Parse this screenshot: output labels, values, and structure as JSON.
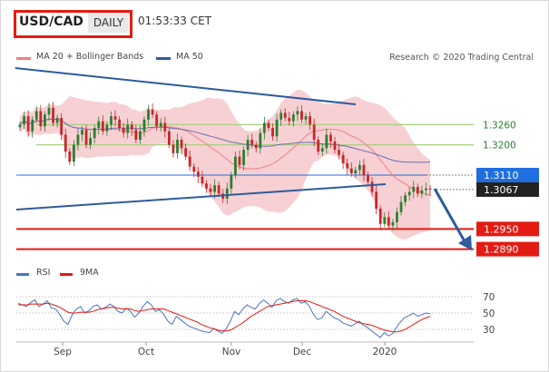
{
  "header": {
    "pair": "USD/CAD",
    "period": "DAILY",
    "time": "01:53:33 CET"
  },
  "credit": "Research © 2020 Trading Central",
  "colors": {
    "accent_red": "#e41b13",
    "blue_line": "#2e5c9c",
    "green_level": "#a8d080",
    "band_fill": "#f6c8cc",
    "candle_up": "#2e7d32",
    "candle_down": "#c62828",
    "rsi_line": "#4a75c4",
    "ma9_line": "#e41b13",
    "tag_blue": "#1f6fe0",
    "tag_dark": "#222222"
  },
  "chart_data": [
    {
      "type": "line",
      "name": "USD/CAD price (daily candles)",
      "legend": [
        {
          "label": "MA 20 + Bollinger Bands",
          "color": "#f08080"
        },
        {
          "label": "MA 50",
          "color": "#2e5c9c"
        }
      ],
      "x_ticks": [
        "Sep",
        "Oct",
        "Nov",
        "Dec",
        "2020"
      ],
      "levels": [
        {
          "value": 1.326,
          "label": "1.3260",
          "style": "green"
        },
        {
          "value": 1.32,
          "label": "1.3200",
          "style": "green"
        },
        {
          "value": 1.311,
          "label": "1.3110",
          "style": "blue-tag"
        },
        {
          "value": 1.3067,
          "label": "1.3067",
          "style": "dark-tag"
        },
        {
          "value": 1.295,
          "label": "1.2950",
          "style": "red-tag"
        },
        {
          "value": 1.289,
          "label": "1.2890",
          "style": "red-tag"
        }
      ],
      "price_range": [
        1.287,
        1.342
      ],
      "close_series": [
        1.326,
        1.3285,
        1.324,
        1.3275,
        1.33,
        1.3255,
        1.329,
        1.331,
        1.3265,
        1.328,
        1.323,
        1.318,
        1.315,
        1.32,
        1.323,
        1.3245,
        1.32,
        1.322,
        1.325,
        1.327,
        1.324,
        1.326,
        1.3285,
        1.3275,
        1.325,
        1.3235,
        1.326,
        1.3245,
        1.3215,
        1.324,
        1.3275,
        1.3305,
        1.329,
        1.3255,
        1.3265,
        1.324,
        1.32,
        1.3175,
        1.3215,
        1.319,
        1.3165,
        1.3135,
        1.312,
        1.3105,
        1.3085,
        1.307,
        1.306,
        1.308,
        1.3055,
        1.304,
        1.307,
        1.311,
        1.3165,
        1.314,
        1.3185,
        1.3215,
        1.32,
        1.319,
        1.3235,
        1.3265,
        1.325,
        1.3225,
        1.3275,
        1.3295,
        1.328,
        1.327,
        1.329,
        1.33,
        1.3275,
        1.3285,
        1.326,
        1.3215,
        1.318,
        1.319,
        1.323,
        1.321,
        1.3185,
        1.317,
        1.3145,
        1.313,
        1.3115,
        1.3125,
        1.314,
        1.311,
        1.309,
        1.306,
        1.301,
        1.2965,
        1.2985,
        1.296,
        1.297,
        1.3,
        1.303,
        1.305,
        1.306,
        1.3075,
        1.3055,
        1.3065,
        1.307,
        1.3067
      ],
      "trendlines": [
        {
          "name": "upper-resistance",
          "from_index": 12,
          "to_index": 79
        },
        {
          "name": "lower-support",
          "from_index": 0,
          "to_index": 84
        }
      ],
      "projection": "down toward 1.2890"
    },
    {
      "type": "line",
      "name": "RSI panel",
      "legend": [
        {
          "label": "RSI",
          "color": "#4a75c4"
        },
        {
          "label": "9MA",
          "color": "#e41b13"
        }
      ],
      "y_ticks": [
        70,
        50,
        30
      ],
      "ylim": [
        20,
        80
      ],
      "rsi": [
        62,
        60,
        58,
        63,
        66,
        58,
        61,
        65,
        56,
        55,
        48,
        40,
        36,
        48,
        55,
        58,
        50,
        53,
        58,
        60,
        55,
        57,
        61,
        58,
        52,
        50,
        56,
        52,
        45,
        50,
        58,
        64,
        60,
        52,
        54,
        48,
        40,
        36,
        46,
        42,
        38,
        34,
        32,
        30,
        28,
        27,
        26,
        31,
        28,
        25,
        31,
        40,
        52,
        48,
        55,
        60,
        57,
        55,
        62,
        66,
        62,
        57,
        65,
        68,
        64,
        62,
        66,
        68,
        62,
        64,
        58,
        48,
        42,
        44,
        52,
        48,
        44,
        42,
        38,
        36,
        34,
        37,
        40,
        35,
        32,
        28,
        24,
        20,
        26,
        22,
        25,
        33,
        40,
        45,
        47,
        50,
        46,
        48,
        50,
        49
      ],
      "ma9": [
        60,
        60,
        60,
        61,
        61,
        61,
        61,
        62,
        61,
        59,
        57,
        54,
        51,
        50,
        50,
        51,
        51,
        51,
        52,
        54,
        55,
        56,
        57,
        57,
        56,
        55,
        55,
        55,
        53,
        52,
        53,
        54,
        55,
        55,
        55,
        55,
        53,
        51,
        49,
        47,
        45,
        43,
        41,
        39,
        36,
        34,
        32,
        31,
        29,
        28,
        28,
        29,
        32,
        35,
        38,
        42,
        46,
        49,
        52,
        55,
        58,
        59,
        60,
        61,
        62,
        63,
        64,
        65,
        65,
        65,
        64,
        62,
        60,
        58,
        56,
        54,
        52,
        49,
        46,
        44,
        42,
        40,
        38,
        37,
        36,
        35,
        33,
        31,
        29,
        28,
        27,
        27,
        28,
        30,
        33,
        36,
        39,
        42,
        44,
        46
      ]
    }
  ]
}
